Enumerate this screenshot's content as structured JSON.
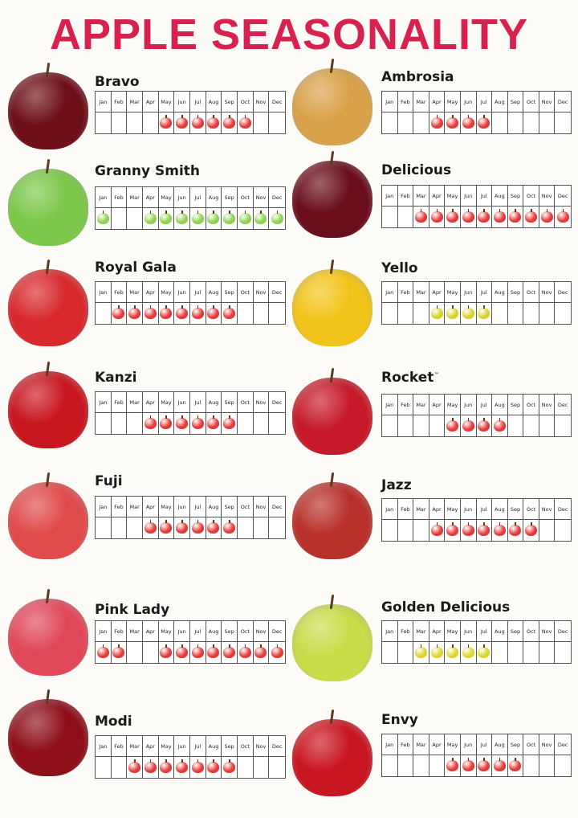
{
  "title": "APPLE SEASONALITY",
  "months": [
    "Jan",
    "Feb",
    "Mar",
    "Apr",
    "May",
    "Jun",
    "Jul",
    "Aug",
    "Sep",
    "Oct",
    "Nov",
    "Dec"
  ],
  "varieties": [
    {
      "name": "Bravo",
      "months": [
        5,
        6,
        7,
        8,
        9,
        10
      ],
      "icon_color": "#e53a3a",
      "apple_color": "#6e0f18"
    },
    {
      "name": "Ambrosia",
      "months": [
        4,
        5,
        6,
        7
      ],
      "icon_color": "#e53a3a",
      "apple_color": "#d9a24a"
    },
    {
      "name": "Granny Smith",
      "months": [
        1,
        4,
        5,
        6,
        7,
        8,
        9,
        10,
        11,
        12
      ],
      "icon_color": "#8fd14f",
      "apple_color": "#7cc84a"
    },
    {
      "name": "Delicious",
      "months": [
        3,
        4,
        5,
        6,
        7,
        8,
        9,
        10,
        11,
        12
      ],
      "icon_color": "#e53a3a",
      "apple_color": "#6a0d1c"
    },
    {
      "name": "Royal Gala",
      "months": [
        2,
        3,
        4,
        5,
        6,
        7,
        8,
        9
      ],
      "icon_color": "#e53a3a",
      "apple_color": "#d8282c"
    },
    {
      "name": "Yello",
      "months": [
        4,
        5,
        6,
        7
      ],
      "icon_color": "#d9d22a",
      "apple_color": "#f2c419"
    },
    {
      "name": "Kanzi",
      "months": [
        4,
        5,
        6,
        7,
        8,
        9
      ],
      "icon_color": "#e53a3a",
      "apple_color": "#c8161f"
    },
    {
      "name": "Rocket",
      "tm": "™",
      "months": [
        5,
        6,
        7,
        8
      ],
      "icon_color": "#e53a3a",
      "apple_color": "#c61a2a"
    },
    {
      "name": "Fuji",
      "months": [
        4,
        5,
        6,
        7,
        8,
        9
      ],
      "icon_color": "#e53a3a",
      "apple_color": "#e04a4a"
    },
    {
      "name": "Jazz",
      "months": [
        4,
        5,
        6,
        7,
        8,
        9,
        10
      ],
      "icon_color": "#e53a3a",
      "apple_color": "#b8302a"
    },
    {
      "name": "Pink Lady",
      "months": [
        1,
        2,
        5,
        6,
        7,
        8,
        9,
        10,
        11,
        12
      ],
      "icon_color": "#e53a3a",
      "apple_color": "#e0485a"
    },
    {
      "name": "Golden Delicious",
      "months": [
        3,
        4,
        5,
        6,
        7
      ],
      "icon_color": "#dcd52a",
      "apple_color": "#c9dc4a"
    },
    {
      "name": "Modi",
      "months": [
        3,
        4,
        5,
        6,
        7,
        8,
        9
      ],
      "icon_color": "#e53a3a",
      "apple_color": "#8e0f1a"
    },
    {
      "name": "Envy",
      "months": [
        5,
        6,
        7,
        8,
        9
      ],
      "icon_color": "#e53a3a",
      "apple_color": "#c9151f"
    }
  ]
}
